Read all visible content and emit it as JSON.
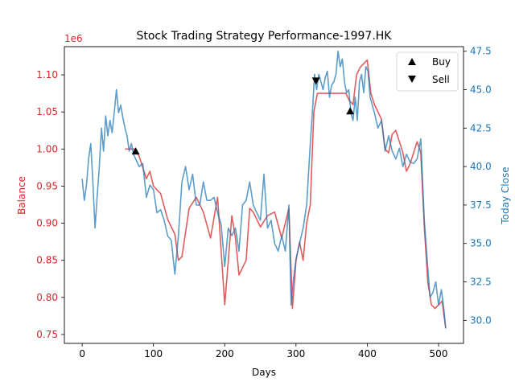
{
  "chart_data": {
    "type": "line",
    "title": "Stock Trading Strategy Performance-1997.HK",
    "xlabel": "Days",
    "ylabel_left": "Balance",
    "ylabel_right": "Today Close",
    "offset_text_left": "1e6",
    "xlim": [
      -25,
      535
    ],
    "ylim_left": [
      0.738,
      1.138
    ],
    "ylim_right": [
      28.5,
      47.8
    ],
    "x_ticks": [
      0,
      100,
      200,
      300,
      400,
      500
    ],
    "y_ticks_left": [
      0.75,
      0.8,
      0.85,
      0.9,
      0.95,
      1.0,
      1.05,
      1.1
    ],
    "y_ticks_right": [
      30.0,
      32.5,
      35.0,
      37.5,
      40.0,
      42.5,
      45.0,
      47.5
    ],
    "colors": {
      "balance": "#d62728",
      "close": "#1f77b4",
      "markers": "#000000"
    },
    "legend": {
      "placement": "upper right",
      "entries": [
        {
          "label": "Buy",
          "marker": "triangle-up"
        },
        {
          "label": "Sell",
          "marker": "triangle-down"
        }
      ]
    },
    "series": [
      {
        "name": "Balance",
        "axis": "left",
        "x": [
          60,
          75,
          80,
          90,
          95,
          100,
          110,
          120,
          130,
          135,
          140,
          150,
          160,
          170,
          180,
          190,
          200,
          210,
          215,
          220,
          225,
          230,
          235,
          240,
          250,
          260,
          270,
          280,
          290,
          295,
          300,
          305,
          310,
          315,
          320,
          325,
          330,
          335,
          345,
          355,
          365,
          370,
          375,
          380,
          385,
          390,
          395,
          400,
          405,
          410,
          420,
          425,
          430,
          435,
          440,
          450,
          455,
          460,
          470,
          475,
          480,
          485,
          490,
          495,
          500,
          505,
          510
        ],
        "y": [
          1.0,
          1.0,
          0.99,
          0.96,
          0.97,
          0.95,
          0.94,
          0.905,
          0.885,
          0.85,
          0.855,
          0.92,
          0.935,
          0.915,
          0.88,
          0.935,
          0.79,
          0.91,
          0.88,
          0.83,
          0.84,
          0.85,
          0.92,
          0.915,
          0.895,
          0.91,
          0.915,
          0.88,
          0.92,
          0.785,
          0.85,
          0.875,
          0.85,
          0.9,
          0.925,
          1.05,
          1.075,
          1.075,
          1.075,
          1.075,
          1.075,
          1.075,
          1.065,
          1.06,
          1.1,
          1.11,
          1.115,
          1.12,
          1.075,
          1.06,
          1.04,
          1.0,
          0.995,
          1.02,
          1.025,
          0.995,
          0.97,
          0.98,
          1.01,
          0.995,
          0.895,
          0.82,
          0.79,
          0.785,
          0.79,
          0.795,
          0.758
        ]
      },
      {
        "name": "Today Close",
        "axis": "right",
        "x": [
          0,
          3,
          6,
          9,
          12,
          15,
          18,
          21,
          24,
          27,
          30,
          33,
          36,
          39,
          42,
          45,
          48,
          51,
          54,
          57,
          60,
          63,
          66,
          69,
          72,
          75,
          80,
          85,
          90,
          95,
          100,
          105,
          110,
          115,
          120,
          125,
          130,
          135,
          140,
          145,
          150,
          155,
          160,
          165,
          170,
          175,
          180,
          185,
          190,
          195,
          200,
          205,
          210,
          215,
          220,
          225,
          230,
          235,
          240,
          245,
          250,
          255,
          260,
          265,
          270,
          275,
          280,
          285,
          290,
          293,
          296,
          300,
          305,
          310,
          315,
          320,
          323,
          326,
          329,
          332,
          335,
          338,
          341,
          344,
          347,
          350,
          353,
          356,
          359,
          362,
          365,
          368,
          371,
          374,
          377,
          380,
          383,
          386,
          389,
          392,
          395,
          398,
          401,
          404,
          407,
          410,
          415,
          420,
          425,
          430,
          435,
          440,
          445,
          450,
          455,
          460,
          465,
          470,
          475,
          480,
          484,
          488,
          492,
          496,
          500,
          504,
          508,
          510
        ],
        "y": [
          39.2,
          37.8,
          38.8,
          40.5,
          41.5,
          39.0,
          36.0,
          38.0,
          40.0,
          42.5,
          41.0,
          43.3,
          42.0,
          43.0,
          42.2,
          43.5,
          45.0,
          43.5,
          44.0,
          43.2,
          42.5,
          42.0,
          41.0,
          41.5,
          40.8,
          40.5,
          40.0,
          40.2,
          38.0,
          38.8,
          38.5,
          37.0,
          37.2,
          36.5,
          35.5,
          35.2,
          33.0,
          35.5,
          39.0,
          40.0,
          38.5,
          39.5,
          37.5,
          37.5,
          39.0,
          37.8,
          37.8,
          38.0,
          37.0,
          36.2,
          33.5,
          36.0,
          35.5,
          36.0,
          34.5,
          37.5,
          37.8,
          39.0,
          37.5,
          37.0,
          36.5,
          39.5,
          36.0,
          36.5,
          35.0,
          34.5,
          35.5,
          34.5,
          37.5,
          31.0,
          32.5,
          34.0,
          35.0,
          36.0,
          37.5,
          41.5,
          43.5,
          46.0,
          45.0,
          46.0,
          45.5,
          45.0,
          45.8,
          46.2,
          44.5,
          45.3,
          45.5,
          46.0,
          47.5,
          46.5,
          47.0,
          45.5,
          44.8,
          45.0,
          43.5,
          43.0,
          44.5,
          43.0,
          45.5,
          46.0,
          44.8,
          46.5,
          46.2,
          44.5,
          44.0,
          43.5,
          42.5,
          43.0,
          41.0,
          42.0,
          41.0,
          40.5,
          41.2,
          40.0,
          40.8,
          40.3,
          40.2,
          40.5,
          41.8,
          36.5,
          34.0,
          31.5,
          31.8,
          32.5,
          31.0,
          32.0,
          30.5,
          29.5
        ]
      }
    ],
    "markers": [
      {
        "type": "buy",
        "x": 75,
        "y": 0.997,
        "axis": "left"
      },
      {
        "type": "sell",
        "x": 328,
        "y": 1.092,
        "axis": "left"
      },
      {
        "type": "buy",
        "x": 376,
        "y": 1.051,
        "axis": "left"
      }
    ]
  }
}
